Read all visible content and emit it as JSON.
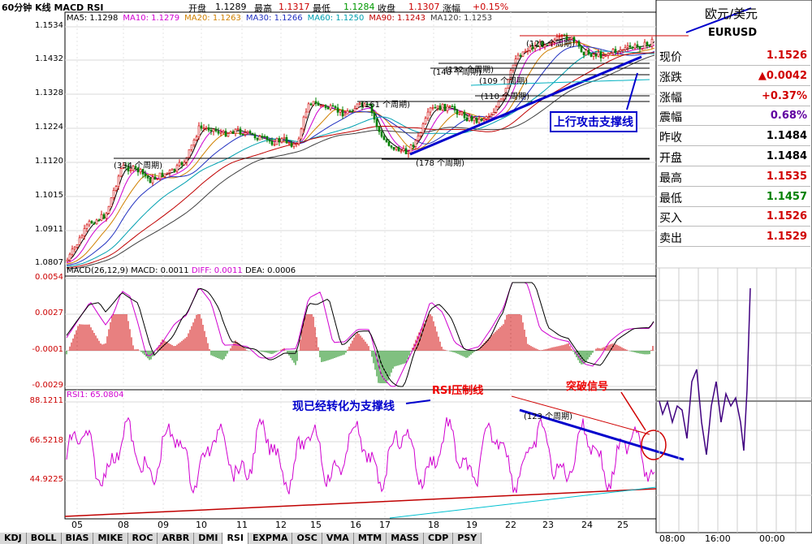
{
  "header": {
    "title": "60分钟 K线 MACD RSI",
    "open_label": "开盘",
    "open": "1.1289",
    "high_label": "最高",
    "high": "1.1317",
    "low_label": "最低",
    "low": "1.1284",
    "close_label": "收盘",
    "close": "1.1307",
    "change_label": "涨幅",
    "change": "+0.15%"
  },
  "ma_legend": [
    {
      "text": "MA5: 1.1298",
      "color": "#000000"
    },
    {
      "text": "MA10: 1.1279",
      "color": "#d000d0"
    },
    {
      "text": "MA20: 1.1263",
      "color": "#d08000"
    },
    {
      "text": "MA30: 1.1266",
      "color": "#2030c0"
    },
    {
      "text": "MA60: 1.1250",
      "color": "#00a0b0"
    },
    {
      "text": "MA90: 1.1243",
      "color": "#c00000"
    },
    {
      "text": "MA120: 1.1253",
      "color": "#404040"
    }
  ],
  "macd_legend": {
    "macd": "MACD(26,12,9) MACD: 0.0011",
    "diff": "DIFF: 0.0011",
    "dea": "DEA: 0.0006"
  },
  "rsi_legend": "RSI1: 65.0804",
  "price_axis": [
    "1.1534",
    "1.1432",
    "1.1328",
    "1.1224",
    "1.1120",
    "1.1015",
    "1.0911",
    "1.0807"
  ],
  "macd_axis": [
    "0.0054",
    "0.0027",
    "-0.0001",
    "-0.0029"
  ],
  "rsi_axis": [
    "88.1211",
    "66.5218",
    "44.9225"
  ],
  "x_ticks": [
    "05",
    "08",
    "09",
    "10",
    "11",
    "12",
    "15",
    "16",
    "17",
    "18",
    "19",
    "22",
    "23",
    "24",
    "25"
  ],
  "period_labels": [
    {
      "text": "(334 个周期)"
    },
    {
      "text": "(178 个周期)"
    },
    {
      "text": "(161 个周期)"
    },
    {
      "text": "(120 个周期)"
    },
    {
      "text": "(132 个周期)"
    },
    {
      "text": "(148 个周期)"
    },
    {
      "text": "(109 个周期)"
    },
    {
      "text": "(110 个周期)"
    },
    {
      "text": "(123 个周期)"
    }
  ],
  "annotations": {
    "uptrend": "上行攻击支撑线",
    "rsi_resist": "RSI压制线",
    "breakout": "突破信号",
    "now_support": "现已经转化为支撑线"
  },
  "quote_panel": {
    "pair_name": "欧元/美元",
    "pair_code": "EURUSD",
    "rows": [
      {
        "label": "现价",
        "value": "1.1526",
        "color": "#d00000"
      },
      {
        "label": "涨跌",
        "value": "▲0.0042",
        "color": "#d00000"
      },
      {
        "label": "涨幅",
        "value": "+0.37%",
        "color": "#d00000"
      },
      {
        "label": "震幅",
        "value": "0.68%",
        "color": "#6000a0"
      },
      {
        "label": "昨收",
        "value": "1.1484",
        "color": "#000000"
      },
      {
        "label": "开盘",
        "value": "1.1484",
        "color": "#000000"
      },
      {
        "label": "最高",
        "value": "1.1535",
        "color": "#d00000"
      },
      {
        "label": "最低",
        "value": "1.1457",
        "color": "#008000"
      },
      {
        "label": "买入",
        "value": "1.1526",
        "color": "#d00000"
      },
      {
        "label": "卖出",
        "value": "1.1529",
        "color": "#d00000"
      }
    ],
    "time_labels": [
      "08:00",
      "16:00",
      "00:00"
    ]
  },
  "tabs": [
    "KDJ",
    "BOLL",
    "BIAS",
    "MIKE",
    "ROC",
    "ARBR",
    "DMI",
    "RSI",
    "EXPMA",
    "OSC",
    "VMA",
    "MTM",
    "MASS",
    "CDP",
    "PSY"
  ],
  "active_tab": "RSI"
}
